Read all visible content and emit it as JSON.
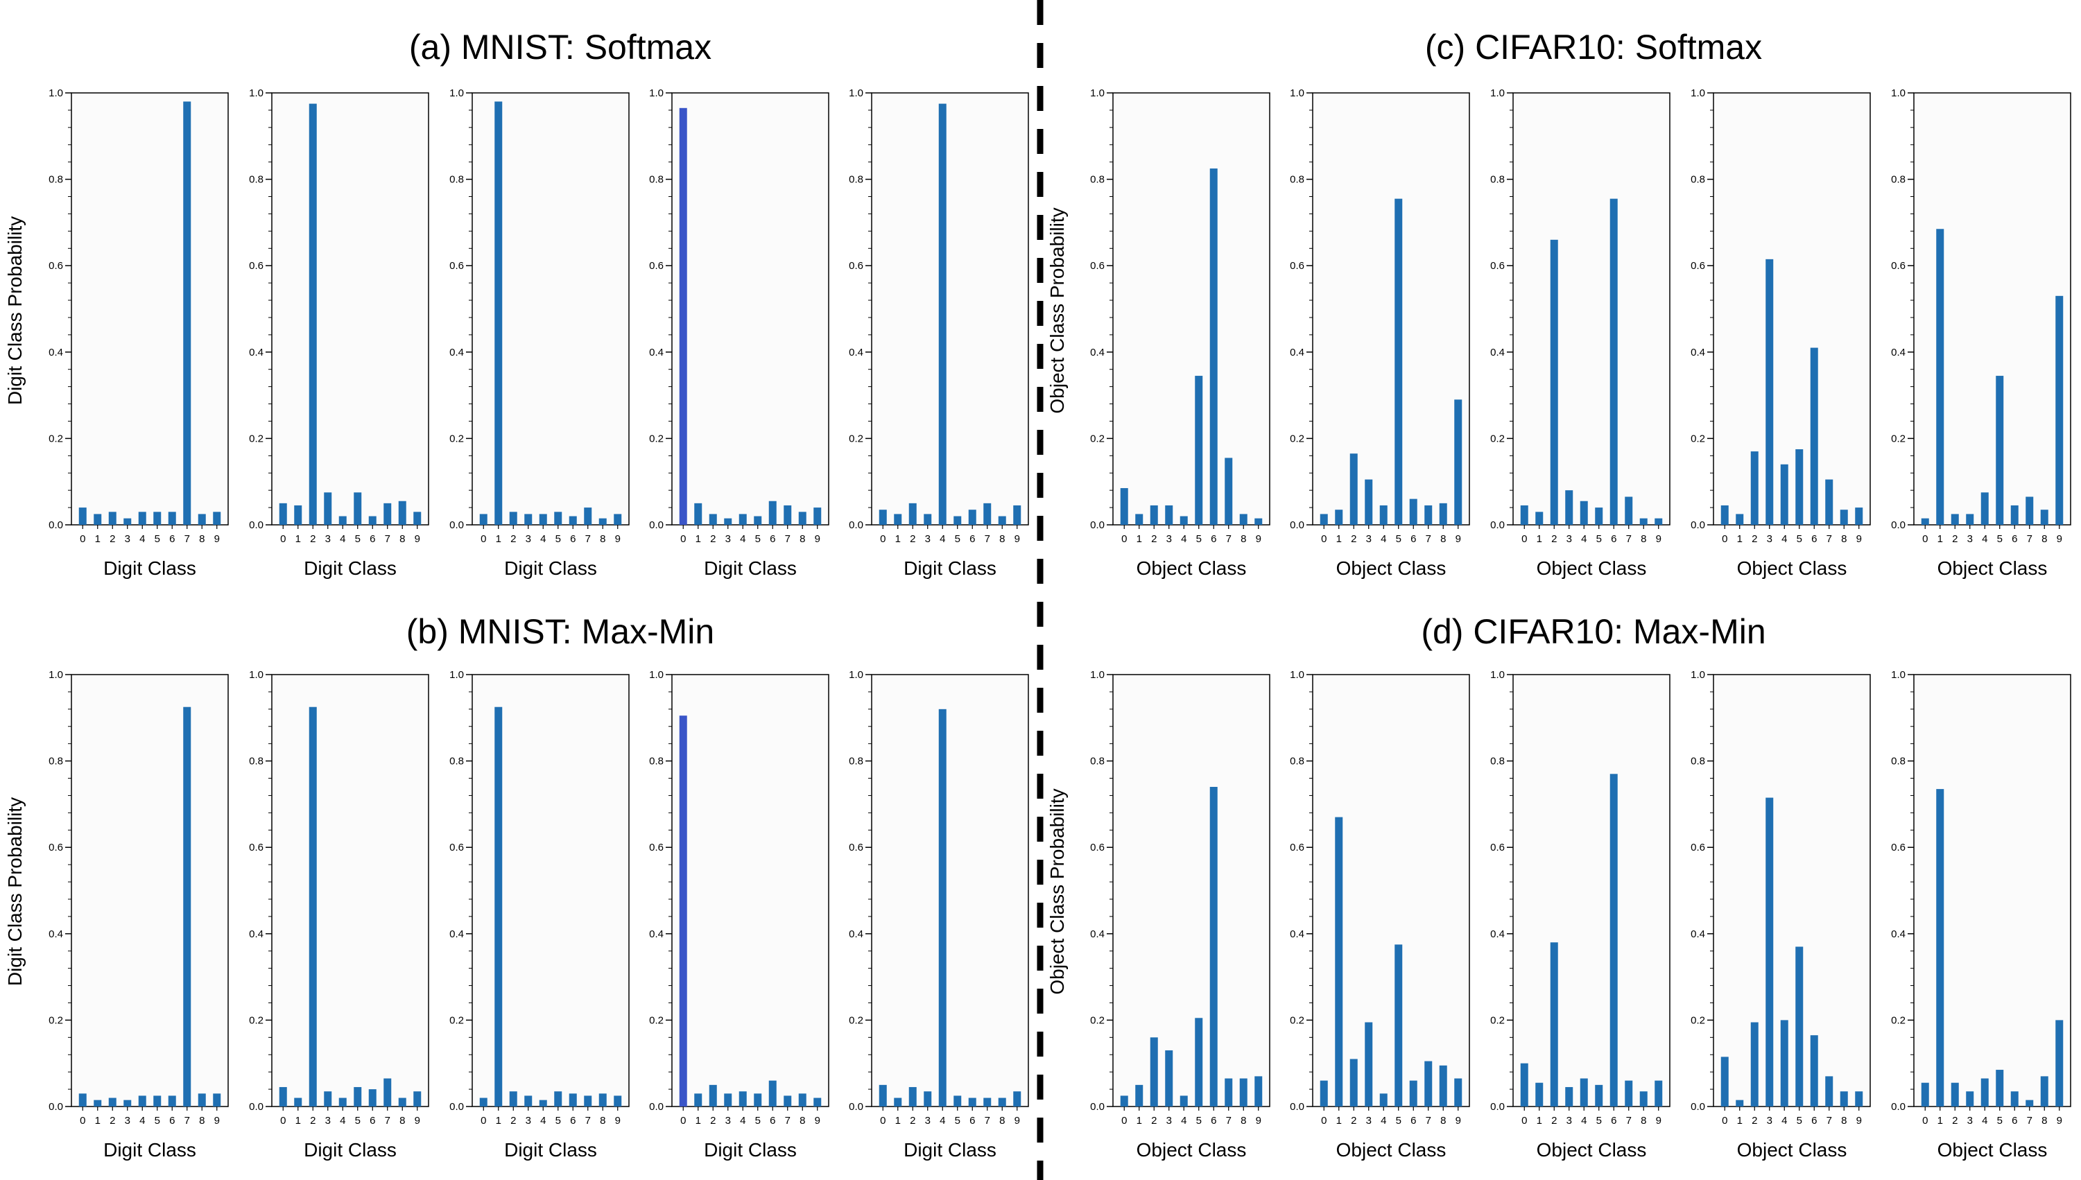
{
  "figure": {
    "panel_titles": [
      "(a) MNIST: Softmax",
      "(b) MNIST: Max-Min",
      "(c) CIFAR10: Softmax",
      "(d) CIFAR10: Max-Min"
    ],
    "colors": {
      "bar": "#1f6fb2",
      "bar_alt": "#3a55c8",
      "plot_bg": "#fbfbfb",
      "divider": "#000000"
    }
  },
  "chart_data": [
    {
      "group": "(a) MNIST: Softmax",
      "type": "bar",
      "ylabel": "Digit Class Probability",
      "xlabel": "Digit Class",
      "ylim": [
        0,
        1.0
      ],
      "yticks": [
        "0.0",
        "0.2",
        "0.4",
        "0.6",
        "0.8",
        "1.0"
      ],
      "categories": [
        "0",
        "1",
        "2",
        "3",
        "4",
        "5",
        "6",
        "7",
        "8",
        "9"
      ],
      "series": [
        {
          "values": [
            0.04,
            0.025,
            0.03,
            0.015,
            0.03,
            0.03,
            0.03,
            0.98,
            0.025,
            0.03
          ]
        },
        {
          "values": [
            0.05,
            0.045,
            0.975,
            0.075,
            0.02,
            0.075,
            0.02,
            0.05,
            0.055,
            0.03
          ]
        },
        {
          "values": [
            0.025,
            0.98,
            0.03,
            0.025,
            0.025,
            0.03,
            0.02,
            0.04,
            0.015,
            0.025
          ]
        },
        {
          "values": [
            0.965,
            0.05,
            0.025,
            0.015,
            0.025,
            0.02,
            0.055,
            0.045,
            0.03,
            0.04
          ]
        },
        {
          "values": [
            0.035,
            0.025,
            0.05,
            0.025,
            0.975,
            0.02,
            0.035,
            0.05,
            0.02,
            0.045
          ]
        }
      ]
    },
    {
      "group": "(b) MNIST: Max-Min",
      "type": "bar",
      "ylabel": "Digit Class Probability",
      "xlabel": "Digit Class",
      "ylim": [
        0,
        1.0
      ],
      "yticks": [
        "0.0",
        "0.2",
        "0.4",
        "0.6",
        "0.8",
        "1.0"
      ],
      "categories": [
        "0",
        "1",
        "2",
        "3",
        "4",
        "5",
        "6",
        "7",
        "8",
        "9"
      ],
      "series": [
        {
          "values": [
            0.03,
            0.015,
            0.02,
            0.015,
            0.025,
            0.025,
            0.025,
            0.925,
            0.03,
            0.03
          ]
        },
        {
          "values": [
            0.045,
            0.02,
            0.925,
            0.035,
            0.02,
            0.045,
            0.04,
            0.065,
            0.02,
            0.035
          ]
        },
        {
          "values": [
            0.02,
            0.925,
            0.035,
            0.025,
            0.015,
            0.035,
            0.03,
            0.025,
            0.03,
            0.025
          ]
        },
        {
          "values": [
            0.905,
            0.03,
            0.05,
            0.03,
            0.035,
            0.03,
            0.06,
            0.025,
            0.03,
            0.02
          ]
        },
        {
          "values": [
            0.05,
            0.02,
            0.045,
            0.035,
            0.92,
            0.025,
            0.02,
            0.02,
            0.02,
            0.035
          ]
        }
      ]
    },
    {
      "group": "(c) CIFAR10: Softmax",
      "type": "bar",
      "ylabel": "Object Class Probability",
      "xlabel": "Object Class",
      "ylim": [
        0,
        1.0
      ],
      "yticks": [
        "0.0",
        "0.2",
        "0.4",
        "0.6",
        "0.8",
        "1.0"
      ],
      "categories": [
        "0",
        "1",
        "2",
        "3",
        "4",
        "5",
        "6",
        "7",
        "8",
        "9"
      ],
      "series": [
        {
          "values": [
            0.085,
            0.025,
            0.045,
            0.045,
            0.02,
            0.345,
            0.825,
            0.155,
            0.025,
            0.015
          ]
        },
        {
          "values": [
            0.025,
            0.035,
            0.165,
            0.105,
            0.045,
            0.755,
            0.06,
            0.045,
            0.05,
            0.29
          ]
        },
        {
          "values": [
            0.045,
            0.03,
            0.66,
            0.08,
            0.055,
            0.04,
            0.755,
            0.065,
            0.015,
            0.015
          ]
        },
        {
          "values": [
            0.045,
            0.025,
            0.17,
            0.615,
            0.14,
            0.175,
            0.41,
            0.105,
            0.035,
            0.04
          ]
        },
        {
          "values": [
            0.015,
            0.685,
            0.025,
            0.025,
            0.075,
            0.345,
            0.045,
            0.065,
            0.035,
            0.53
          ]
        }
      ]
    },
    {
      "group": "(d) CIFAR10: Max-Min",
      "type": "bar",
      "ylabel": "Object Class Probability",
      "xlabel": "Object Class",
      "ylim": [
        0,
        1.0
      ],
      "yticks": [
        "0.0",
        "0.2",
        "0.4",
        "0.6",
        "0.8",
        "1.0"
      ],
      "categories": [
        "0",
        "1",
        "2",
        "3",
        "4",
        "5",
        "6",
        "7",
        "8",
        "9"
      ],
      "series": [
        {
          "values": [
            0.025,
            0.05,
            0.16,
            0.13,
            0.025,
            0.205,
            0.74,
            0.065,
            0.065,
            0.07
          ]
        },
        {
          "values": [
            0.06,
            0.67,
            0.11,
            0.195,
            0.03,
            0.375,
            0.06,
            0.105,
            0.095,
            0.065
          ]
        },
        {
          "values": [
            0.1,
            0.055,
            0.38,
            0.045,
            0.065,
            0.05,
            0.77,
            0.06,
            0.035,
            0.06
          ]
        },
        {
          "values": [
            0.115,
            0.015,
            0.195,
            0.715,
            0.2,
            0.37,
            0.165,
            0.07,
            0.035,
            0.035
          ]
        },
        {
          "values": [
            0.055,
            0.735,
            0.055,
            0.035,
            0.065,
            0.085,
            0.035,
            0.015,
            0.07,
            0.2
          ]
        }
      ]
    }
  ]
}
